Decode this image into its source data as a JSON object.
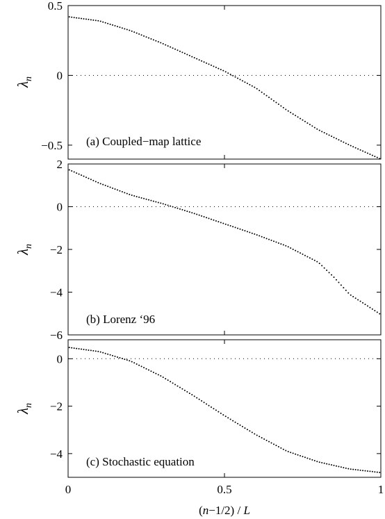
{
  "chart_data": [
    {
      "type": "scatter",
      "panel_label": "(a) Coupled−map lattice",
      "ylabel_main": "λ",
      "ylabel_sub": "n",
      "xlabel": "",
      "xlim": [
        0,
        1
      ],
      "ylim": [
        -0.6,
        0.5
      ],
      "yticks": [
        -0.5,
        0,
        0.5
      ],
      "ytick_labels": [
        "−0.5",
        "0",
        "0.5"
      ],
      "xticks": [
        0,
        0.5,
        1
      ],
      "xtick_labels": [
        "",
        "",
        ""
      ],
      "zero_line": true,
      "series": [
        {
          "x": [
            0,
            0.1,
            0.2,
            0.3,
            0.4,
            0.5,
            0.6,
            0.7,
            0.8,
            0.9,
            1.0
          ],
          "y": [
            0.42,
            0.39,
            0.32,
            0.23,
            0.13,
            0.03,
            -0.09,
            -0.25,
            -0.39,
            -0.5,
            -0.6
          ]
        }
      ]
    },
    {
      "type": "scatter",
      "panel_label": "(b) Lorenz ‘96",
      "ylabel_main": "λ",
      "ylabel_sub": "n",
      "xlabel": "",
      "xlim": [
        0,
        1
      ],
      "ylim": [
        -6,
        2
      ],
      "yticks": [
        -6,
        -4,
        -2,
        0,
        2
      ],
      "ytick_labels": [
        "−6",
        "−4",
        "−2",
        "0",
        "2"
      ],
      "xticks": [
        0,
        0.5,
        1
      ],
      "xtick_labels": [
        "",
        "",
        ""
      ],
      "zero_line": true,
      "series": [
        {
          "x": [
            0,
            0.1,
            0.2,
            0.3,
            0.4,
            0.5,
            0.6,
            0.7,
            0.8,
            0.85,
            0.9,
            1.0
          ],
          "y": [
            1.75,
            1.1,
            0.55,
            0.15,
            -0.3,
            -0.8,
            -1.3,
            -1.85,
            -2.6,
            -3.3,
            -4.1,
            -5.05
          ]
        }
      ]
    },
    {
      "type": "scatter",
      "panel_label": "(c) Stochastic equation",
      "ylabel_main": "λ",
      "ylabel_sub": "n",
      "xlabel": "(n−1/2) / L",
      "xlim": [
        0,
        1
      ],
      "ylim": [
        -5,
        0.8
      ],
      "yticks": [
        -4,
        -2,
        0
      ],
      "ytick_labels": [
        "−4",
        "−2",
        "0"
      ],
      "xticks": [
        0,
        0.5,
        1
      ],
      "xtick_labels": [
        "0",
        "0.5",
        "1"
      ],
      "zero_line": true,
      "series": [
        {
          "x": [
            0,
            0.1,
            0.2,
            0.3,
            0.4,
            0.5,
            0.6,
            0.7,
            0.8,
            0.9,
            1.0
          ],
          "y": [
            0.48,
            0.3,
            -0.1,
            -0.75,
            -1.55,
            -2.4,
            -3.2,
            -3.9,
            -4.35,
            -4.65,
            -4.8
          ]
        }
      ]
    }
  ]
}
